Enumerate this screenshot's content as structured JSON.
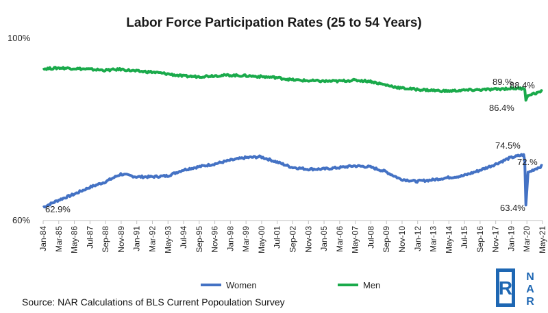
{
  "chart_data": {
    "type": "line",
    "title": "Labor Force Participation Rates (25 to 54 Years)",
    "ylim": [
      60,
      100
    ],
    "y_ticks": [
      "100%",
      "60%"
    ],
    "x_tick_labels": [
      "Jan-84",
      "Mar-85",
      "May-86",
      "Jul-87",
      "Sep-88",
      "Nov-89",
      "Jan-91",
      "Mar-92",
      "May-93",
      "Jul-94",
      "Sep-95",
      "Nov-96",
      "Jan-98",
      "Mar-99",
      "May-00",
      "Jul-01",
      "Sep-02",
      "Nov-03",
      "Jan-05",
      "Mar-06",
      "May-07",
      "Jul-08",
      "Sep-09",
      "Nov-10",
      "Jan-12",
      "Mar-13",
      "May-14",
      "Jul-15",
      "Sep-16",
      "Nov-17",
      "Jan-19",
      "Mar-20",
      "May-21"
    ],
    "x_range": [
      "1984-01",
      "2021-07"
    ],
    "grid": false,
    "legend_position": "bottom",
    "series": [
      {
        "name": "Women",
        "color": "#4472c4",
        "points": [
          [
            "1984-01",
            62.9
          ],
          [
            "1985-03",
            64.5
          ],
          [
            "1986-05",
            65.8
          ],
          [
            "1987-07",
            67.3
          ],
          [
            "1988-09",
            68.5
          ],
          [
            "1989-11",
            70.2
          ],
          [
            "1991-01",
            69.6
          ],
          [
            "1992-03",
            69.6
          ],
          [
            "1993-05",
            69.8
          ],
          [
            "1994-07",
            71.1
          ],
          [
            "1995-09",
            71.8
          ],
          [
            "1996-11",
            72.4
          ],
          [
            "1998-01",
            73.2
          ],
          [
            "1999-03",
            73.8
          ],
          [
            "2000-05",
            74.0
          ],
          [
            "2001-07",
            72.9
          ],
          [
            "2002-09",
            71.7
          ],
          [
            "2003-11",
            71.3
          ],
          [
            "2005-01",
            71.3
          ],
          [
            "2006-03",
            71.6
          ],
          [
            "2007-05",
            72.0
          ],
          [
            "2008-07",
            71.8
          ],
          [
            "2009-09",
            70.8
          ],
          [
            "2010-11",
            69.1
          ],
          [
            "2012-01",
            68.6
          ],
          [
            "2013-03",
            68.9
          ],
          [
            "2014-05",
            69.4
          ],
          [
            "2015-07",
            69.8
          ],
          [
            "2016-09",
            70.9
          ],
          [
            "2017-11",
            72.2
          ],
          [
            "2019-01",
            73.7
          ],
          [
            "2020-02",
            74.5
          ],
          [
            "2020-03",
            73.0
          ],
          [
            "2020-04",
            63.4
          ],
          [
            "2020-06",
            70.5
          ],
          [
            "2020-12",
            71.3
          ],
          [
            "2021-07",
            72.0
          ]
        ],
        "annotations": [
          "62.9%",
          "74.5%",
          "63.4%",
          "72.%"
        ]
      },
      {
        "name": "Men",
        "color": "#1aaa4b",
        "points": [
          [
            "1984-01",
            93.3
          ],
          [
            "1985-03",
            93.5
          ],
          [
            "1986-05",
            93.4
          ],
          [
            "1987-07",
            93.2
          ],
          [
            "1988-09",
            93.0
          ],
          [
            "1989-11",
            93.2
          ],
          [
            "1991-01",
            92.8
          ],
          [
            "1992-03",
            92.6
          ],
          [
            "1993-05",
            92.2
          ],
          [
            "1994-07",
            91.7
          ],
          [
            "1995-09",
            91.6
          ],
          [
            "1996-11",
            91.8
          ],
          [
            "1998-01",
            91.9
          ],
          [
            "1999-03",
            91.8
          ],
          [
            "2000-05",
            91.6
          ],
          [
            "2001-07",
            91.4
          ],
          [
            "2002-09",
            90.9
          ],
          [
            "2003-11",
            90.7
          ],
          [
            "2005-01",
            90.6
          ],
          [
            "2006-03",
            90.6
          ],
          [
            "2007-05",
            90.8
          ],
          [
            "2008-07",
            90.6
          ],
          [
            "2009-09",
            89.8
          ],
          [
            "2010-11",
            89.1
          ],
          [
            "2012-01",
            88.8
          ],
          [
            "2013-03",
            88.6
          ],
          [
            "2014-05",
            88.4
          ],
          [
            "2015-07",
            88.6
          ],
          [
            "2016-09",
            88.7
          ],
          [
            "2017-11",
            88.8
          ],
          [
            "2019-01",
            89.0
          ],
          [
            "2020-02",
            89.0
          ],
          [
            "2020-03",
            88.7
          ],
          [
            "2020-04",
            86.4
          ],
          [
            "2020-06",
            87.6
          ],
          [
            "2020-12",
            87.9
          ],
          [
            "2021-07",
            88.4
          ]
        ],
        "annotations": [
          "89.%",
          "88.4%",
          "86.4%"
        ]
      }
    ],
    "source_note": "Source: NAR Calculations of BLS Current Popoulation Survey"
  },
  "logo": {
    "letters": [
      "N",
      "A",
      "R"
    ],
    "glyph": "R",
    "color": "#1e67b3"
  }
}
